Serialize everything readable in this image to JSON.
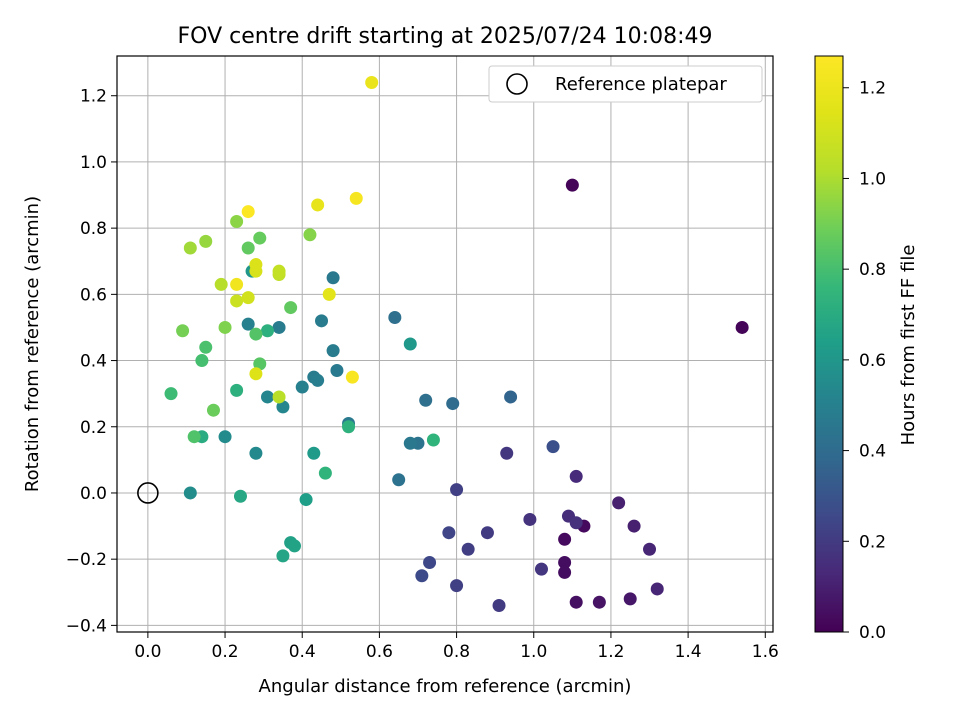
{
  "chart_data": {
    "type": "scatter",
    "title": "FOV centre drift starting at 2025/07/24 10:08:49",
    "xlabel": "Angular distance from reference (arcmin)",
    "ylabel": "Rotation from reference (arcmin)",
    "xlim": [
      -0.08,
      1.62
    ],
    "ylim": [
      -0.42,
      1.32
    ],
    "xticks": [
      0.0,
      0.2,
      0.4,
      0.6,
      0.8,
      1.0,
      1.2,
      1.4,
      1.6
    ],
    "xtick_labels": [
      "0.0",
      "0.2",
      "0.4",
      "0.6",
      "0.8",
      "1.0",
      "1.2",
      "1.4",
      "1.6"
    ],
    "yticks": [
      -0.4,
      -0.2,
      0.0,
      0.2,
      0.4,
      0.6,
      0.8,
      1.0,
      1.2
    ],
    "ytick_labels": [
      "−0.4",
      "−0.2",
      "0.0",
      "0.2",
      "0.4",
      "0.6",
      "0.8",
      "1.0",
      "1.2"
    ],
    "grid": true,
    "legend": {
      "placement": "top-right",
      "entries": [
        "Reference platepar"
      ]
    },
    "colorbar": {
      "label": "Hours from first FF file",
      "range": [
        0.0,
        1.27
      ],
      "ticks": [
        0.0,
        0.2,
        0.4,
        0.6,
        0.8,
        1.0,
        1.2
      ],
      "tick_labels": [
        "0.0",
        "0.2",
        "0.4",
        "0.6",
        "0.8",
        "1.0",
        "1.2"
      ],
      "colormap": "viridis"
    },
    "reference_point": {
      "x": 0.0,
      "y": 0.0
    },
    "points": [
      {
        "x": 1.1,
        "y": 0.93,
        "h": 0.01
      },
      {
        "x": 1.54,
        "y": 0.5,
        "h": 0.01
      },
      {
        "x": 1.08,
        "y": -0.14,
        "h": 0.03
      },
      {
        "x": 1.13,
        "y": -0.1,
        "h": 0.03
      },
      {
        "x": 1.08,
        "y": -0.21,
        "h": 0.04
      },
      {
        "x": 1.08,
        "y": -0.24,
        "h": 0.04
      },
      {
        "x": 1.11,
        "y": -0.33,
        "h": 0.05
      },
      {
        "x": 1.17,
        "y": -0.33,
        "h": 0.06
      },
      {
        "x": 1.25,
        "y": -0.32,
        "h": 0.07
      },
      {
        "x": 1.22,
        "y": -0.03,
        "h": 0.1
      },
      {
        "x": 1.26,
        "y": -0.1,
        "h": 0.1
      },
      {
        "x": 1.3,
        "y": -0.17,
        "h": 0.12
      },
      {
        "x": 1.32,
        "y": -0.29,
        "h": 0.12
      },
      {
        "x": 1.11,
        "y": 0.05,
        "h": 0.14
      },
      {
        "x": 1.09,
        "y": -0.07,
        "h": 0.15
      },
      {
        "x": 1.11,
        "y": -0.09,
        "h": 0.16
      },
      {
        "x": 0.99,
        "y": -0.08,
        "h": 0.17
      },
      {
        "x": 1.02,
        "y": -0.23,
        "h": 0.18
      },
      {
        "x": 0.93,
        "y": 0.12,
        "h": 0.19
      },
      {
        "x": 0.91,
        "y": -0.34,
        "h": 0.2
      },
      {
        "x": 0.88,
        "y": -0.12,
        "h": 0.2
      },
      {
        "x": 0.83,
        "y": -0.17,
        "h": 0.21
      },
      {
        "x": 0.8,
        "y": 0.01,
        "h": 0.22
      },
      {
        "x": 0.8,
        "y": -0.28,
        "h": 0.22
      },
      {
        "x": 0.78,
        "y": -0.12,
        "h": 0.24
      },
      {
        "x": 0.73,
        "y": -0.21,
        "h": 0.25
      },
      {
        "x": 0.71,
        "y": -0.25,
        "h": 0.26
      },
      {
        "x": 1.05,
        "y": 0.14,
        "h": 0.28
      },
      {
        "x": 0.94,
        "y": 0.29,
        "h": 0.37
      },
      {
        "x": 0.79,
        "y": 0.27,
        "h": 0.4
      },
      {
        "x": 0.72,
        "y": 0.28,
        "h": 0.42
      },
      {
        "x": 0.64,
        "y": 0.53,
        "h": 0.42
      },
      {
        "x": 0.65,
        "y": 0.04,
        "h": 0.43
      },
      {
        "x": 0.7,
        "y": 0.15,
        "h": 0.44
      },
      {
        "x": 0.68,
        "y": 0.15,
        "h": 0.46
      },
      {
        "x": 0.48,
        "y": 0.65,
        "h": 0.46
      },
      {
        "x": 0.48,
        "y": 0.43,
        "h": 0.48
      },
      {
        "x": 0.49,
        "y": 0.37,
        "h": 0.47
      },
      {
        "x": 0.52,
        "y": 0.21,
        "h": 0.47
      },
      {
        "x": 0.45,
        "y": 0.52,
        "h": 0.48
      },
      {
        "x": 0.43,
        "y": 0.35,
        "h": 0.48
      },
      {
        "x": 0.44,
        "y": 0.34,
        "h": 0.49
      },
      {
        "x": 0.4,
        "y": 0.32,
        "h": 0.5
      },
      {
        "x": 0.34,
        "y": 0.5,
        "h": 0.48
      },
      {
        "x": 0.26,
        "y": 0.51,
        "h": 0.5
      },
      {
        "x": 0.31,
        "y": 0.29,
        "h": 0.52
      },
      {
        "x": 0.35,
        "y": 0.26,
        "h": 0.53
      },
      {
        "x": 0.28,
        "y": 0.12,
        "h": 0.54
      },
      {
        "x": 0.2,
        "y": 0.17,
        "h": 0.55
      },
      {
        "x": 0.11,
        "y": 0.0,
        "h": 0.56
      },
      {
        "x": 0.27,
        "y": 0.67,
        "h": 0.6
      },
      {
        "x": 0.68,
        "y": 0.45,
        "h": 0.61
      },
      {
        "x": 0.43,
        "y": 0.12,
        "h": 0.62
      },
      {
        "x": 0.41,
        "y": -0.02,
        "h": 0.64
      },
      {
        "x": 0.37,
        "y": -0.15,
        "h": 0.65
      },
      {
        "x": 0.38,
        "y": -0.16,
        "h": 0.66
      },
      {
        "x": 0.35,
        "y": -0.19,
        "h": 0.67
      },
      {
        "x": 0.24,
        "y": -0.01,
        "h": 0.68
      },
      {
        "x": 0.14,
        "y": 0.17,
        "h": 0.7
      },
      {
        "x": 0.23,
        "y": 0.31,
        "h": 0.72
      },
      {
        "x": 0.31,
        "y": 0.49,
        "h": 0.72
      },
      {
        "x": 0.52,
        "y": 0.2,
        "h": 0.73
      },
      {
        "x": 0.46,
        "y": 0.06,
        "h": 0.74
      },
      {
        "x": 0.74,
        "y": 0.16,
        "h": 0.74
      },
      {
        "x": 0.06,
        "y": 0.3,
        "h": 0.78
      },
      {
        "x": 0.14,
        "y": 0.4,
        "h": 0.8
      },
      {
        "x": 0.15,
        "y": 0.44,
        "h": 0.81
      },
      {
        "x": 0.12,
        "y": 0.17,
        "h": 0.82
      },
      {
        "x": 0.28,
        "y": 0.48,
        "h": 0.83
      },
      {
        "x": 0.29,
        "y": 0.39,
        "h": 0.84
      },
      {
        "x": 0.37,
        "y": 0.56,
        "h": 0.86
      },
      {
        "x": 0.26,
        "y": 0.74,
        "h": 0.86
      },
      {
        "x": 0.29,
        "y": 0.77,
        "h": 0.87
      },
      {
        "x": 0.17,
        "y": 0.25,
        "h": 0.88
      },
      {
        "x": 0.09,
        "y": 0.49,
        "h": 0.9
      },
      {
        "x": 0.2,
        "y": 0.5,
        "h": 0.92
      },
      {
        "x": 0.42,
        "y": 0.78,
        "h": 0.93
      },
      {
        "x": 0.23,
        "y": 0.82,
        "h": 0.94
      },
      {
        "x": 0.15,
        "y": 0.76,
        "h": 0.96
      },
      {
        "x": 0.11,
        "y": 0.74,
        "h": 0.98
      },
      {
        "x": 0.19,
        "y": 0.63,
        "h": 1.02
      },
      {
        "x": 0.34,
        "y": 0.29,
        "h": 1.03
      },
      {
        "x": 0.34,
        "y": 0.66,
        "h": 1.05
      },
      {
        "x": 0.34,
        "y": 0.67,
        "h": 1.06
      },
      {
        "x": 0.23,
        "y": 0.58,
        "h": 1.08
      },
      {
        "x": 0.26,
        "y": 0.59,
        "h": 1.1
      },
      {
        "x": 0.28,
        "y": 0.67,
        "h": 1.12
      },
      {
        "x": 0.28,
        "y": 0.69,
        "h": 1.13
      },
      {
        "x": 0.28,
        "y": 0.36,
        "h": 1.14
      },
      {
        "x": 0.47,
        "y": 0.6,
        "h": 1.16
      },
      {
        "x": 0.44,
        "y": 0.87,
        "h": 1.18
      },
      {
        "x": 0.58,
        "y": 1.24,
        "h": 1.19
      },
      {
        "x": 0.23,
        "y": 0.63,
        "h": 1.22
      },
      {
        "x": 0.54,
        "y": 0.89,
        "h": 1.24
      },
      {
        "x": 0.53,
        "y": 0.35,
        "h": 1.25
      },
      {
        "x": 0.26,
        "y": 0.85,
        "h": 1.26
      }
    ]
  }
}
